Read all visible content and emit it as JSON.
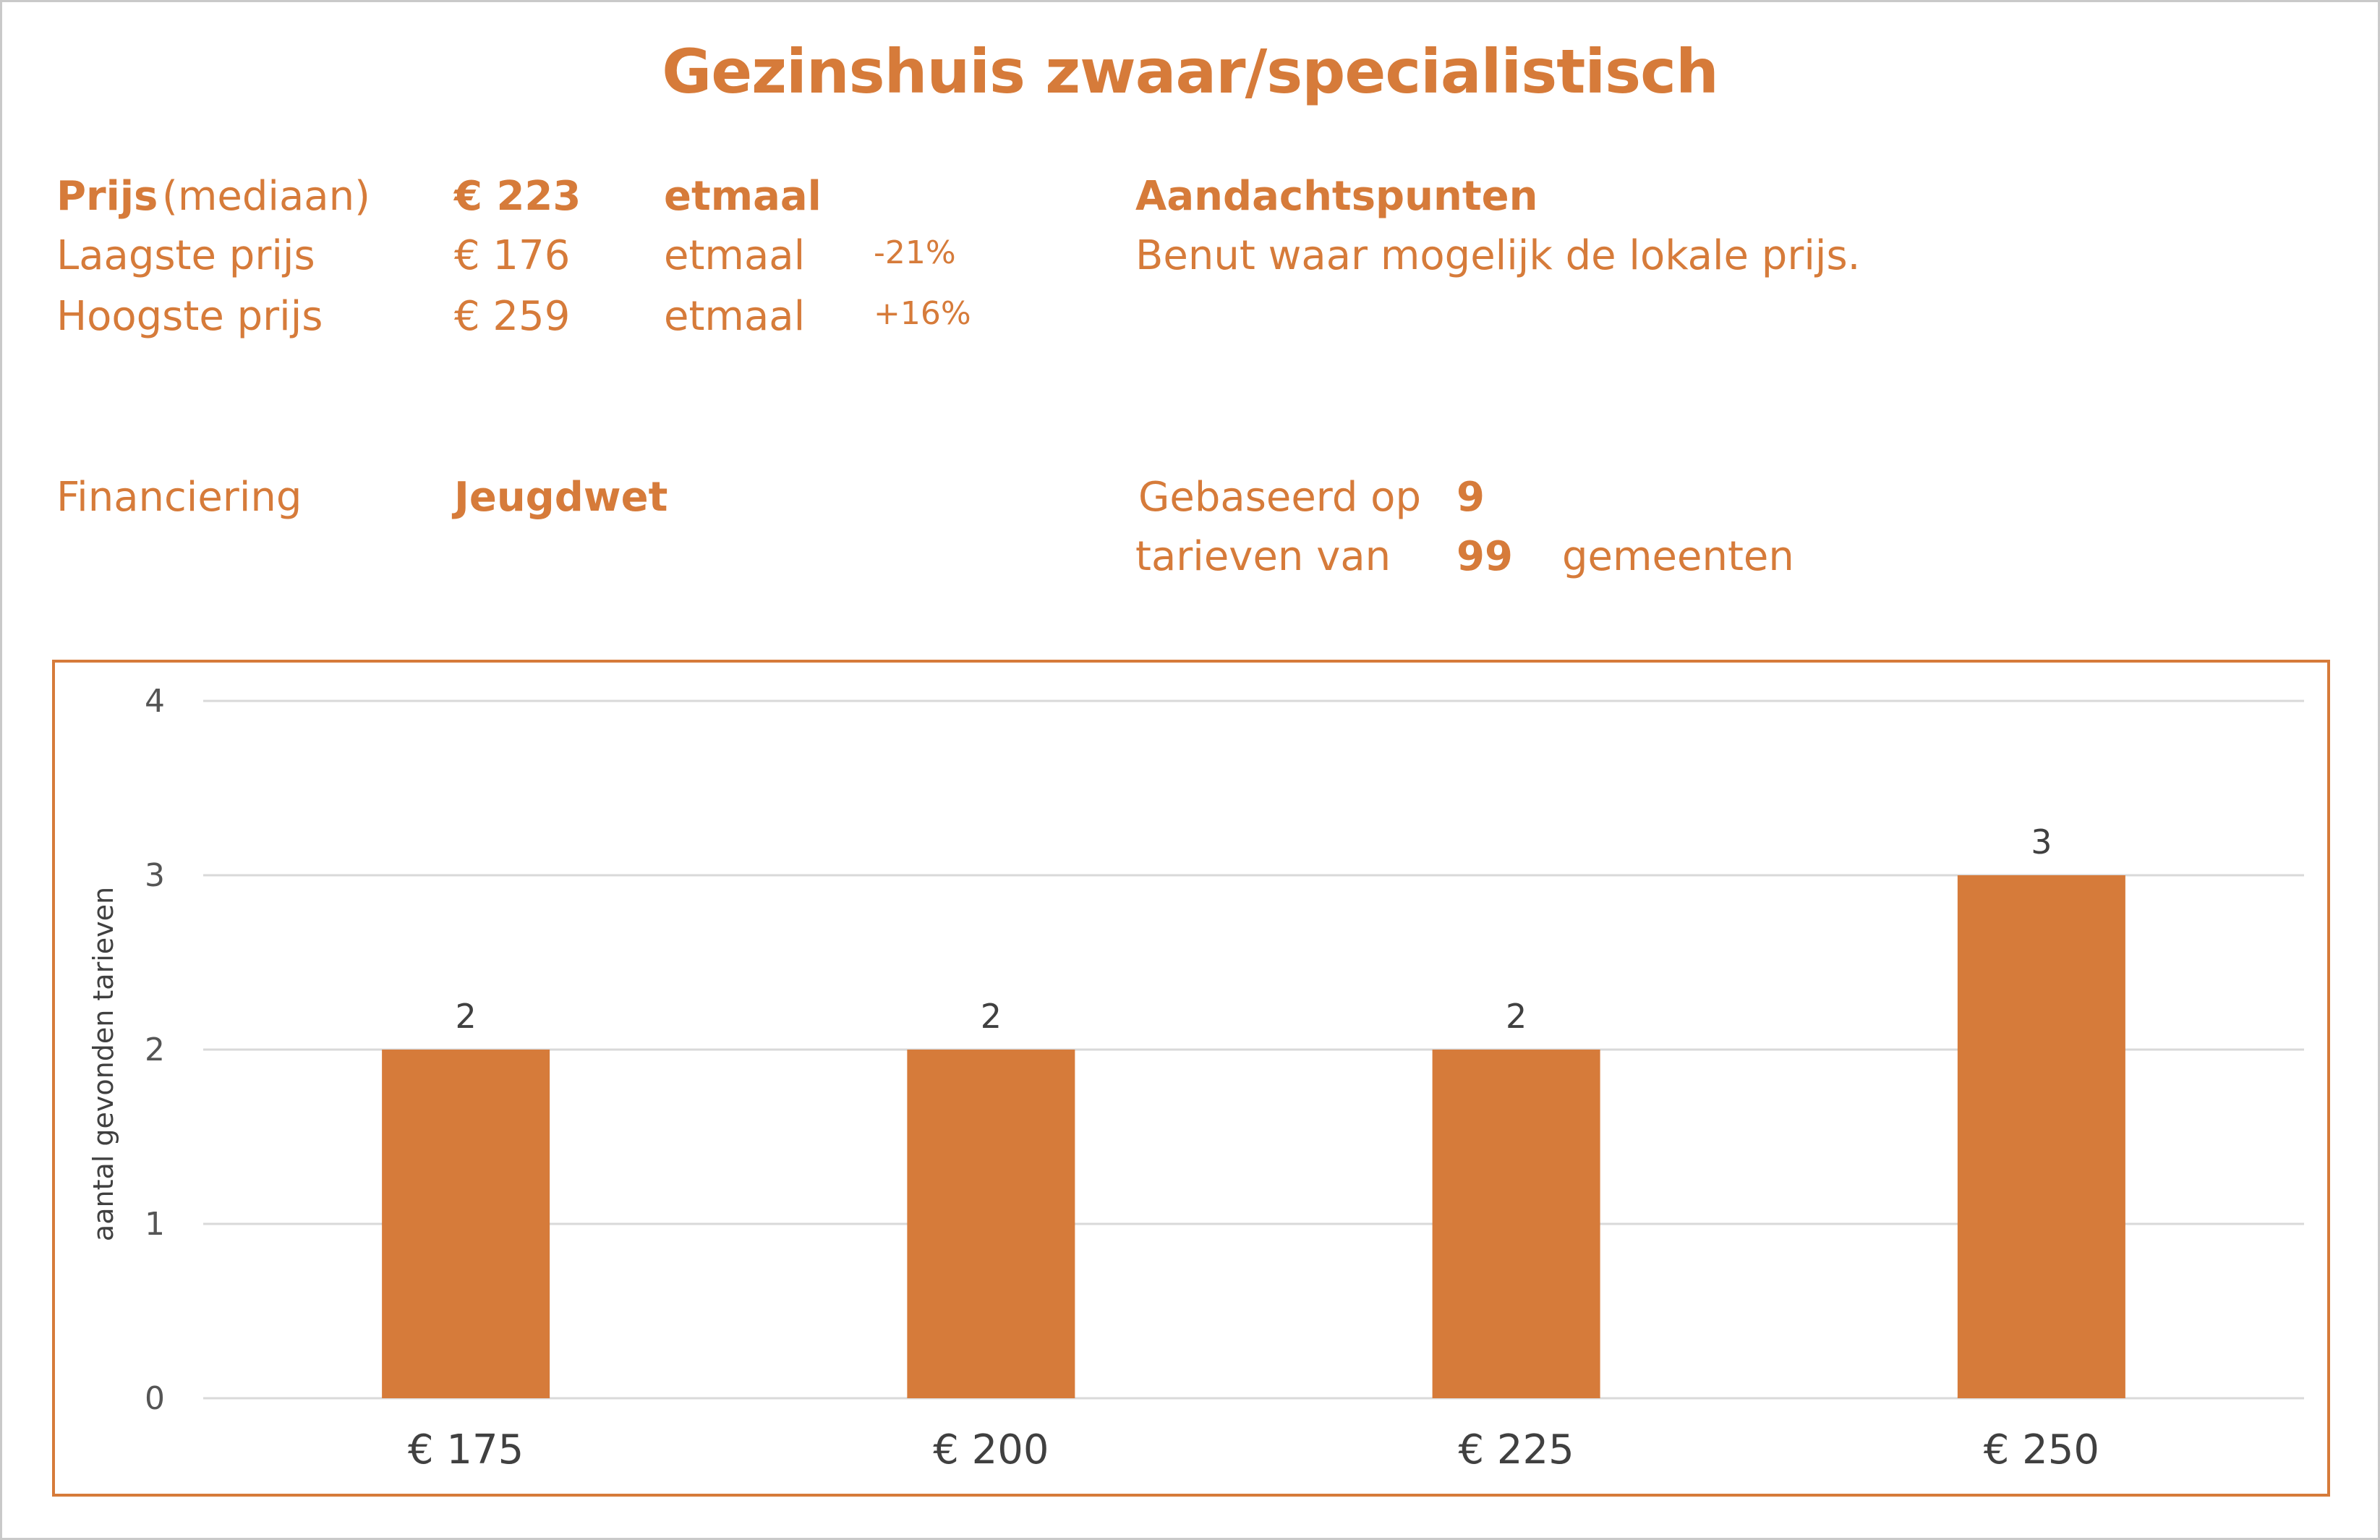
{
  "title": "Gezinshuis zwaar/specialistisch",
  "prices": {
    "median": {
      "label": "Prijs",
      "qualifier": "(mediaan)",
      "value": "€ 223",
      "unit": "etmaal"
    },
    "lowest": {
      "label": "Laagste prijs",
      "value": "€ 176",
      "unit": "etmaal",
      "delta": "-21%"
    },
    "highest": {
      "label": "Hoogste prijs",
      "value": "€ 259",
      "unit": "etmaal",
      "delta": "+16%"
    }
  },
  "notes": {
    "heading": "Aandachtspunten",
    "text": "Benut waar mogelijk de lokale prijs."
  },
  "financing": {
    "label": "Financiering",
    "value": "Jeugdwet"
  },
  "basis": {
    "line1": "Gebaseerd op",
    "count_tariffs": "9",
    "line2": "tarieven van",
    "count_municipalities": "99",
    "suffix": "gemeenten"
  },
  "colors": {
    "accent": "#d67b3a",
    "bar": "#d67b3a",
    "grid": "#d9d9d9",
    "text_dark": "#404040"
  },
  "chart_data": {
    "type": "bar",
    "categories": [
      "€ 175",
      "€ 200",
      "€ 225",
      "€ 250"
    ],
    "values": [
      2,
      2,
      2,
      3
    ],
    "data_labels": [
      "2",
      "2",
      "2",
      "3"
    ],
    "ylabel": "aantal gevonden tarieven",
    "xlabel": "",
    "ylim": [
      0,
      4
    ],
    "yticks": [
      "0",
      "1",
      "2",
      "3",
      "4"
    ],
    "grid": true
  }
}
